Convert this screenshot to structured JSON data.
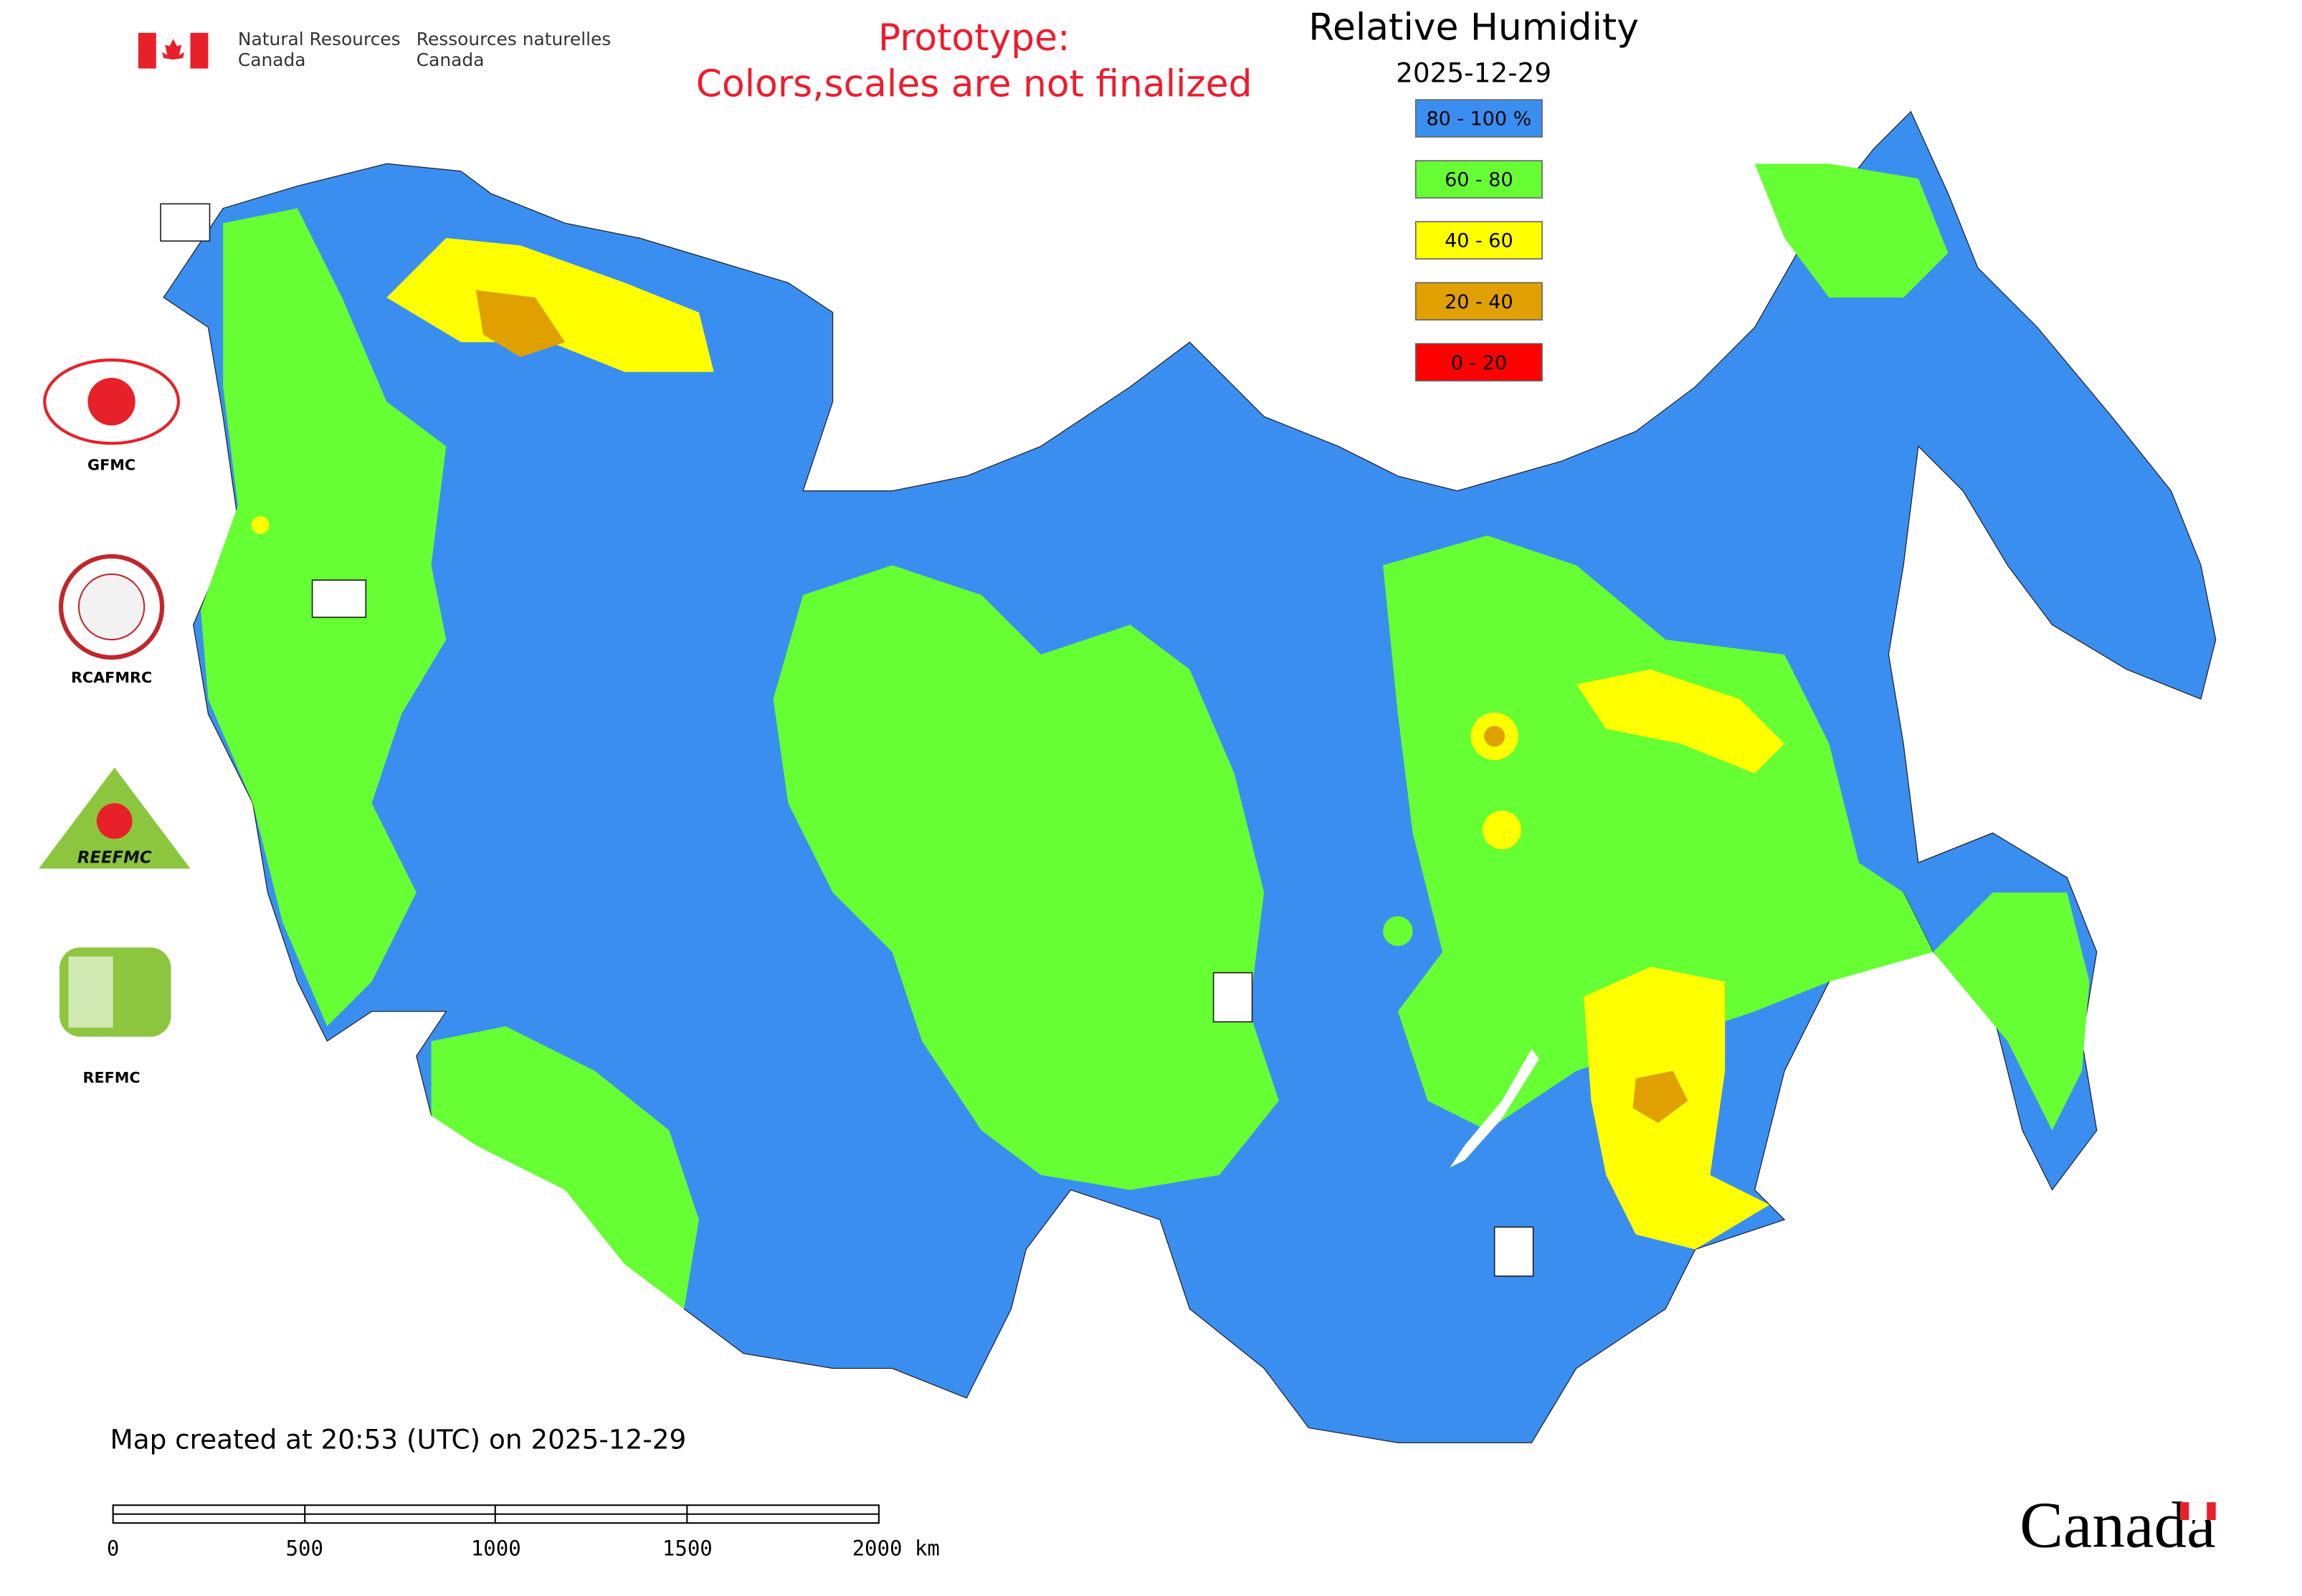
{
  "header": {
    "agency_en": [
      "Natural Resources",
      "Canada"
    ],
    "agency_fr": [
      "Ressources naturelles",
      "Canada"
    ]
  },
  "notice": [
    "Prototype:",
    "Colors,scales are not finalized"
  ],
  "title": "Relative Humidity",
  "date": "2025-12-29",
  "legend": [
    {
      "label": "80 - 100 %",
      "color": "#3a8ef0"
    },
    {
      "label": "60 - 80",
      "color": "#66ff33"
    },
    {
      "label": "40 - 60",
      "color": "#ffff00"
    },
    {
      "label": "20 - 40",
      "color": "#e0a000"
    },
    {
      "label": "0 - 20",
      "color": "#ff0000"
    }
  ],
  "logos": [
    "GFMC",
    "RCAFMRC",
    "REEFMC",
    "REFMC"
  ],
  "footer": "Map created at 20:53 (UTC) on 2025-12-29",
  "scale_bar": [
    "0",
    "500",
    "1000",
    "1500",
    "2000 km"
  ],
  "wordmark": "Canada"
}
